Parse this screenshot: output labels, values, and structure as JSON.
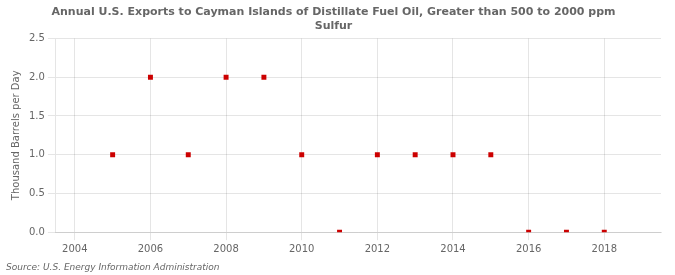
{
  "chart_data": {
    "type": "scatter",
    "title": "Annual U.S. Exports to Cayman Islands of Distillate Fuel Oil, Greater than 500 to 2000 ppm\nSulfur",
    "ylabel": "Thousand Barrels per Day",
    "annotations": [
      "Source: U.S. Energy Information Administration"
    ],
    "x": [
      2005,
      2006,
      2007,
      2008,
      2009,
      2010,
      2011,
      2012,
      2013,
      2014,
      2015,
      2016,
      2017,
      2018
    ],
    "values": [
      1.0,
      2.0,
      1.0,
      2.0,
      2.0,
      1.0,
      0.0,
      1.0,
      1.0,
      1.0,
      1.0,
      0.0,
      0.0,
      0.0
    ],
    "color": "#cc0000",
    "marker": "square",
    "xlim": [
      2003.5,
      2019.5
    ],
    "ylim": [
      0.0,
      2.5
    ],
    "xticks": [
      2004,
      2006,
      2008,
      2010,
      2012,
      2014,
      2016,
      2018
    ],
    "yticks": [
      {
        "value": 0.0,
        "label": "0.0"
      },
      {
        "value": 0.5,
        "label": "0.5"
      },
      {
        "value": 1.0,
        "label": "1.0"
      },
      {
        "value": 1.5,
        "label": "1.5"
      },
      {
        "value": 2.0,
        "label": "2.0"
      },
      {
        "value": 2.5,
        "label": "2.5"
      }
    ],
    "grid": true
  }
}
